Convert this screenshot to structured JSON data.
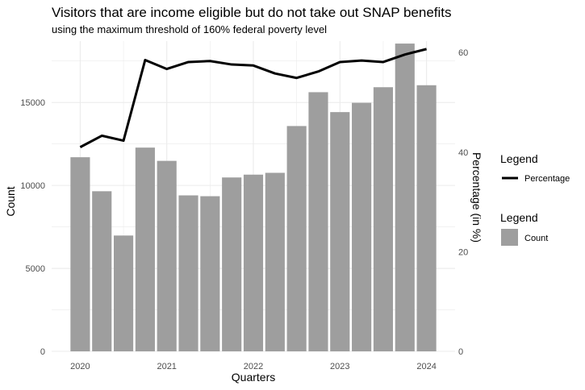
{
  "chart_data": {
    "type": "bar+line",
    "title": "Visitors that are income eligible but do not take out SNAP benefits",
    "subtitle": "using the maximum threshold of 160% federal poverty level",
    "xlabel": "Quarters",
    "ylabel": "Count",
    "y2label": "Percentage (in %)",
    "x_ticks": [
      "2020",
      "2021",
      "2022",
      "2023",
      "2024"
    ],
    "x_tick_positions": [
      2020.0,
      2021.0,
      2022.0,
      2023.0,
      2024.0
    ],
    "y_ticks": [
      "0",
      "5000",
      "10000",
      "15000"
    ],
    "y_tick_values": [
      0,
      5000,
      10000,
      15000
    ],
    "y2_ticks": [
      "0",
      "20",
      "40",
      "60"
    ],
    "y2_tick_values": [
      0,
      20,
      40,
      60
    ],
    "ylim": [
      0,
      18700
    ],
    "y2lim": [
      0,
      62.3
    ],
    "xlim": [
      2019.67,
      2024.33
    ],
    "grid": true,
    "legend_position": "right",
    "colors": {
      "bar": "#9e9e9e",
      "line": "#000000",
      "grid": "#ebebeb"
    },
    "x": [
      2020.0,
      2020.25,
      2020.5,
      2020.75,
      2021.0,
      2021.25,
      2021.5,
      2021.75,
      2022.0,
      2022.25,
      2022.5,
      2022.75,
      2023.0,
      2023.25,
      2023.5,
      2023.75,
      2024.0
    ],
    "series": [
      {
        "name": "Count",
        "kind": "bar",
        "values": [
          11700,
          9650,
          6980,
          12280,
          11480,
          9400,
          9350,
          10480,
          10650,
          10760,
          13580,
          15620,
          14420,
          14980,
          15920,
          18550,
          16040
        ]
      },
      {
        "name": "Percentage",
        "kind": "line",
        "values": [
          41.0,
          43.3,
          42.3,
          58.5,
          56.7,
          58.1,
          58.3,
          57.6,
          57.4,
          55.8,
          54.9,
          56.2,
          58.1,
          58.4,
          58.1,
          59.6,
          60.7
        ]
      }
    ],
    "legends": [
      {
        "title": "Legend",
        "entries": [
          "Percentage"
        ],
        "kind": "line"
      },
      {
        "title": "Legend",
        "entries": [
          "Count"
        ],
        "kind": "bar"
      }
    ]
  }
}
